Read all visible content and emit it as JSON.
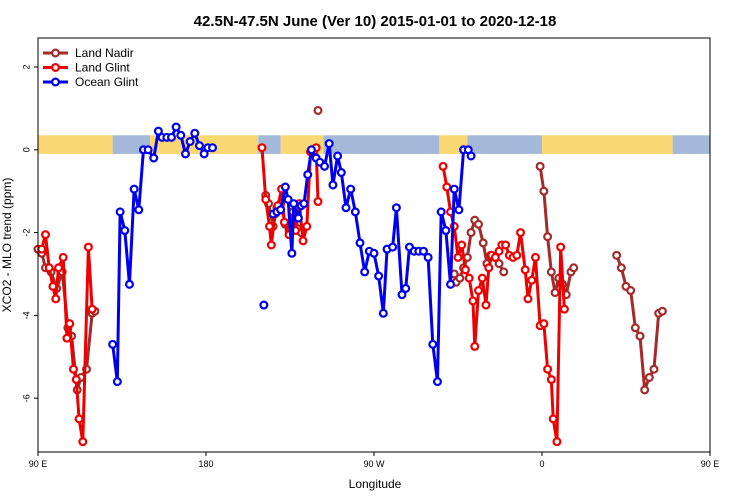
{
  "chart_data": {
    "type": "line",
    "title": "42.5N-47.5N June (Ver 10)   2015-01-01 to 2020-12-18",
    "xlabel": "Longitude",
    "ylabel": "XCO2 - MLO trend (ppm)",
    "xlim": [
      90,
      450
    ],
    "ylim": [
      -7.3,
      2.7
    ],
    "x_ticks": [
      {
        "value": 90,
        "label": "90 E"
      },
      {
        "value": 180,
        "label": "180"
      },
      {
        "value": 270,
        "label": "90 W"
      },
      {
        "value": 360,
        "label": "0"
      },
      {
        "value": 450,
        "label": "90 E"
      },
      {
        "value": 540,
        "label": "180"
      }
    ],
    "y_ticks": [
      2,
      0,
      -2,
      -4,
      -6
    ],
    "legend_position": "top-left",
    "land_strip": {
      "y": 0.2,
      "land_color": "#f9d874",
      "ocean_color": "#a4b9d9",
      "segments": [
        [
          90,
          130,
          "land"
        ],
        [
          130,
          150,
          "ocean"
        ],
        [
          150,
          208,
          "land"
        ],
        [
          208,
          220,
          "ocean"
        ],
        [
          220,
          243,
          "land"
        ],
        [
          243,
          305,
          "ocean"
        ],
        [
          305,
          320,
          "land"
        ],
        [
          320,
          360,
          "ocean"
        ],
        [
          360,
          430,
          "land"
        ],
        [
          430,
          450,
          "ocean"
        ]
      ]
    },
    "series": [
      {
        "name": "Land Nadir",
        "color": "#a52a2a",
        "x": [
          90,
          92.5,
          95,
          97.5,
          100,
          102.5,
          105,
          107.5,
          110,
          112.5,
          115,
          117.5,
          120,
          122.5,
          124,
          128,
          130,
          131.5
        ],
        "y": [
          -2.4,
          -2.5,
          -2.85,
          -2.9,
          -3.1,
          -3.4,
          -3.0,
          -4.25,
          -4.5,
          -5.75,
          -5.5,
          -5.5,
          -4.0,
          -3.8,
          null,
          null,
          null,
          null
        ],
        "segments_x": [
          [
            90,
            92.5,
            95,
            97.5,
            100,
            102.5,
            105,
            107.5,
            110,
            112.5,
            115,
            117.5,
            120
          ],
          [
            212,
            215,
            217.5,
            220,
            222.5,
            225,
            227.5,
            230,
            232.5,
            235
          ],
          [
            312,
            315,
            317.5,
            320,
            322.5,
            325,
            327.5,
            330,
            332.5,
            335,
            337.5
          ],
          [
            362,
            365,
            367.5,
            370,
            372.5,
            375,
            377.5,
            380,
            382.5,
            385
          ]
        ],
        "segments_y": [
          [
            -2.4,
            -2.85,
            -2.9,
            -3.1,
            -3.35,
            -2.95,
            -4.25,
            -4.5,
            -5.75,
            -5.5,
            -5.25,
            -4.0,
            -3.8
          ],
          [
            -1.1,
            -1.3,
            -1.8,
            -1.4,
            -1.3,
            -1.8,
            -1.9,
            -1.6,
            -1.9,
            -2.05
          ],
          [
            -3.2,
            -2.9,
            -2.6,
            -2.0,
            -1.7,
            -1.85,
            -2.3,
            -2.75,
            -2.55,
            -2.6,
            -2.8
          ],
          [
            -0.5,
            -1.0,
            -2.1,
            -2.9,
            -3.45,
            -3.1,
            -3.25,
            -3.5,
            -3.0,
            -2.85
          ]
        ]
      }
    ],
    "series_all": [
      {
        "name": "Land Nadir",
        "color": "#a52a2a",
        "lines": [
          [
            [
              90,
              -2.4
            ],
            [
              92,
              -2.5
            ],
            [
              94,
              -2.85
            ],
            [
              97,
              -2.95
            ],
            [
              100,
              -3.35
            ],
            [
              103,
              -2.95
            ],
            [
              106,
              -4.3
            ],
            [
              108,
              -4.5
            ],
            [
              111,
              -5.8
            ],
            [
              113,
              -5.5
            ],
            [
              116,
              -5.3
            ],
            [
              119,
              -3.95
            ],
            [
              120.5,
              -3.9
            ]
          ],
          [
            [
              212,
              -1.1
            ],
            [
              213.5,
              -1.3
            ],
            [
              216,
              -1.85
            ],
            [
              218,
              -1.4
            ],
            [
              220,
              -1.3
            ],
            [
              222.5,
              -1.8
            ],
            [
              224.5,
              -1.95
            ],
            [
              227,
              -1.6
            ],
            [
              229,
              -1.9
            ],
            [
              231,
              -2.0
            ]
          ],
          [
            [
              313,
              -3.0
            ],
            [
              314,
              -3.2
            ],
            [
              316,
              -3.1
            ],
            [
              318,
              -2.85
            ],
            [
              320,
              -2.6
            ],
            [
              322,
              -2.0
            ],
            [
              324,
              -1.7
            ],
            [
              326,
              -1.8
            ],
            [
              328.5,
              -2.25
            ],
            [
              330.5,
              -2.75
            ],
            [
              332.5,
              -2.55
            ],
            [
              335,
              -2.6
            ],
            [
              337,
              -2.75
            ],
            [
              339.5,
              -2.95
            ]
          ],
          [
            [
              359,
              -0.4
            ],
            [
              361,
              -1.0
            ],
            [
              363,
              -2.1
            ],
            [
              365,
              -2.95
            ],
            [
              367,
              -3.45
            ],
            [
              369,
              -3.1
            ],
            [
              371,
              -3.25
            ],
            [
              373,
              -3.5
            ],
            [
              375.5,
              -2.95
            ],
            [
              377,
              -2.85
            ]
          ],
          [
            [
              400,
              -2.55
            ],
            [
              402.5,
              -2.85
            ],
            [
              405,
              -3.3
            ],
            [
              407.5,
              -3.4
            ],
            [
              410,
              -4.3
            ],
            [
              412.5,
              -4.5
            ],
            [
              415,
              -5.8
            ],
            [
              417.5,
              -5.5
            ],
            [
              420,
              -5.3
            ],
            [
              422.5,
              -3.95
            ],
            [
              424.5,
              -3.9
            ]
          ]
        ],
        "points": [
          [
            240,
            0.95
          ]
        ]
      },
      {
        "name": "Land Glint",
        "color": "#ee0000",
        "lines": [
          [
            [
              92,
              -2.4
            ],
            [
              94,
              -2.05
            ],
            [
              96,
              -2.85
            ],
            [
              98,
              -3.3
            ],
            [
              99.5,
              -3.6
            ],
            [
              101,
              -2.85
            ],
            [
              103.5,
              -2.6
            ],
            [
              105.5,
              -4.55
            ],
            [
              107,
              -4.2
            ],
            [
              109,
              -5.3
            ],
            [
              110.5,
              -5.55
            ],
            [
              112,
              -6.5
            ],
            [
              114,
              -7.05
            ],
            [
              117,
              -2.35
            ],
            [
              119,
              -3.85
            ]
          ],
          [
            [
              210,
              0.05
            ],
            [
              212,
              -1.2
            ],
            [
              214,
              -1.85
            ],
            [
              215,
              -2.3
            ],
            [
              217,
              -1.55
            ],
            [
              218.5,
              -1.35
            ],
            [
              220.5,
              -0.95
            ],
            [
              222,
              -1.75
            ],
            [
              224.5,
              -2.05
            ],
            [
              226.5,
              -1.5
            ],
            [
              228,
              -1.95
            ],
            [
              230,
              -1.3
            ],
            [
              232,
              -2.2
            ],
            [
              234,
              -1.85
            ],
            [
              236,
              -0.05
            ],
            [
              237.5,
              -0.05
            ],
            [
              239,
              0.05
            ],
            [
              240,
              -1.25
            ]
          ],
          [
            [
              307,
              -0.4
            ],
            [
              309,
              -0.9
            ],
            [
              311,
              -1.5
            ],
            [
              313,
              -1.85
            ],
            [
              315,
              -2.6
            ],
            [
              317,
              -2.3
            ],
            [
              319,
              -2.9
            ],
            [
              321,
              -3.1
            ],
            [
              323,
              -3.65
            ],
            [
              324,
              -4.75
            ],
            [
              326,
              -3.4
            ],
            [
              328,
              -3.1
            ],
            [
              330,
              -3.75
            ],
            [
              331.5,
              -2.85
            ],
            [
              333,
              -2.55
            ],
            [
              335,
              -2.6
            ],
            [
              337,
              -2.45
            ],
            [
              338.5,
              -2.3
            ],
            [
              340.5,
              -2.3
            ],
            [
              342.5,
              -2.55
            ],
            [
              344.5,
              -2.6
            ],
            [
              346.5,
              -2.55
            ],
            [
              348.5,
              -2.0
            ],
            [
              351,
              -2.9
            ],
            [
              352.5,
              -3.6
            ],
            [
              354.5,
              -3.15
            ],
            [
              356.5,
              -2.6
            ],
            [
              359,
              -4.25
            ],
            [
              361,
              -4.2
            ],
            [
              363,
              -5.3
            ],
            [
              365,
              -5.55
            ],
            [
              366,
              -6.5
            ],
            [
              368,
              -7.05
            ],
            [
              370,
              -2.35
            ],
            [
              372,
              -3.85
            ]
          ]
        ],
        "points": []
      },
      {
        "name": "Ocean Glint",
        "color": "#0000ee",
        "lines": [
          [
            [
              130,
              -4.7
            ],
            [
              132.5,
              -5.6
            ],
            [
              134,
              -1.5
            ],
            [
              136.5,
              -1.95
            ],
            [
              139,
              -3.25
            ],
            [
              141.5,
              -0.95
            ],
            [
              144,
              -1.45
            ],
            [
              146.5,
              0.0
            ],
            [
              149,
              0.0
            ],
            [
              152,
              -0.2
            ],
            [
              154.5,
              0.45
            ],
            [
              156.5,
              0.3
            ],
            [
              159,
              0.3
            ],
            [
              161.5,
              0.3
            ],
            [
              164,
              0.55
            ],
            [
              166.5,
              0.35
            ],
            [
              169,
              -0.1
            ],
            [
              171.5,
              0.2
            ],
            [
              174,
              0.4
            ],
            [
              176.5,
              0.1
            ],
            [
              179,
              -0.1
            ],
            [
              181,
              0.05
            ],
            [
              183.5,
              0.05
            ]
          ],
          [
            [
              216,
              -1.55
            ],
            [
              218,
              -1.5
            ],
            [
              220,
              -1.45
            ],
            [
              222.5,
              -0.9
            ],
            [
              224,
              -1.2
            ],
            [
              226,
              -2.5
            ],
            [
              227,
              -1.3
            ],
            [
              229.5,
              -1.65
            ],
            [
              231,
              -1.35
            ],
            [
              232.5,
              -1.3
            ],
            [
              234.5,
              -0.6
            ],
            [
              236.5,
              0.0
            ],
            [
              239,
              -0.2
            ],
            [
              241,
              -0.3
            ],
            [
              243.5,
              -0.4
            ],
            [
              246,
              0.15
            ],
            [
              248,
              -0.85
            ],
            [
              250.5,
              -0.15
            ],
            [
              252.5,
              -0.55
            ],
            [
              255,
              -1.4
            ],
            [
              257.5,
              -0.95
            ],
            [
              260,
              -1.5
            ],
            [
              262.5,
              -2.25
            ],
            [
              265,
              -2.95
            ],
            [
              267.5,
              -2.45
            ],
            [
              270,
              -2.5
            ],
            [
              272.5,
              -3.05
            ],
            [
              275,
              -3.95
            ],
            [
              277,
              -2.4
            ],
            [
              280,
              -2.35
            ],
            [
              282,
              -1.4
            ],
            [
              285,
              -3.5
            ],
            [
              287,
              -3.35
            ],
            [
              289,
              -2.35
            ],
            [
              291.5,
              -2.45
            ],
            [
              294,
              -2.45
            ],
            [
              296.5,
              -2.45
            ],
            [
              299,
              -2.6
            ],
            [
              301.5,
              -4.7
            ],
            [
              304,
              -5.6
            ],
            [
              306,
              -1.5
            ],
            [
              308.5,
              -1.95
            ],
            [
              311,
              -3.25
            ],
            [
              313,
              -0.95
            ],
            [
              315.5,
              -1.45
            ],
            [
              318,
              0.0
            ],
            [
              320.5,
              0.0
            ],
            [
              322,
              -0.15
            ]
          ]
        ],
        "points": [
          [
            211,
            -3.75
          ]
        ]
      }
    ]
  }
}
